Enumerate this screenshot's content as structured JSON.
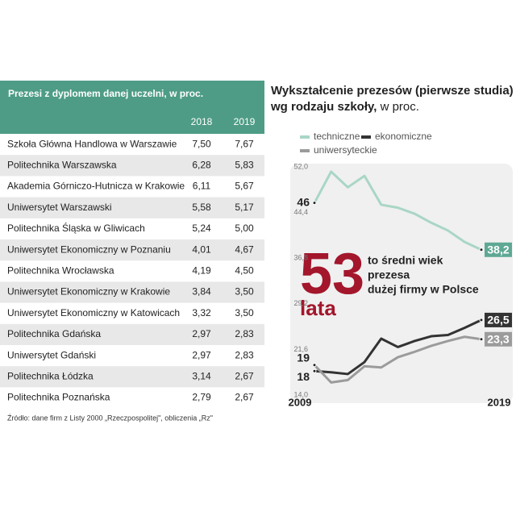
{
  "table": {
    "title": "Prezesi z dyplomem danej uczelni, w proc.",
    "columns": [
      "2018",
      "2019"
    ],
    "rows": [
      [
        "Szkoła Główna Handlowa w Warszawie",
        "7,50",
        "7,67"
      ],
      [
        "Politechnika Warszawska",
        "6,28",
        "5,83"
      ],
      [
        "Akademia Górniczo-Hutnicza w Krakowie",
        "6,11",
        "5,67"
      ],
      [
        "Uniwersytet Warszawski",
        "5,58",
        "5,17"
      ],
      [
        "Politechnika Śląska w Gliwicach",
        "5,24",
        "5,00"
      ],
      [
        "Uniwersytet Ekonomiczny w Poznaniu",
        "4,01",
        "4,67"
      ],
      [
        "Politechnika Wrocławska",
        "4,19",
        "4,50"
      ],
      [
        "Uniwersytet Ekonomiczny w Krakowie",
        "3,84",
        "3,50"
      ],
      [
        "Uniwersytet Ekonomiczny w Katowicach",
        "3,32",
        "3,50"
      ],
      [
        "Politechnika Gdańska",
        "2,97",
        "2,83"
      ],
      [
        "Uniwersytet Gdański",
        "2,97",
        "2,83"
      ],
      [
        "Politechnika Łódzka",
        "3,14",
        "2,67"
      ],
      [
        "Politechnika Poznańska",
        "2,79",
        "2,67"
      ]
    ],
    "source": "Źródło: dane firm z Listy 2000 „Rzeczpospolitej\", obliczenia „Rz\""
  },
  "chart_data": {
    "type": "line",
    "title_lines": [
      "Wykształcenie prezesów (pierwsze studia)",
      "wg rodzaju szkoły,"
    ],
    "subtitle": "w proc.",
    "categories": [
      "2009",
      null,
      null,
      null,
      null,
      null,
      null,
      null,
      null,
      null,
      "2019"
    ],
    "ylim": [
      14.0,
      52.0
    ],
    "yticks": [
      {
        "value": 52.0,
        "label": "52,0"
      },
      {
        "value": 44.4,
        "label": "44,4"
      },
      {
        "value": 36.8,
        "label": "36,8"
      },
      {
        "value": 29.2,
        "label": "29,2"
      },
      {
        "value": 21.6,
        "label": "21,6"
      },
      {
        "value": 14.0,
        "label": "14,0"
      }
    ],
    "grid": false,
    "series": [
      {
        "name": "techniczne",
        "color": "#a9d6c5",
        "label_color": "#5ea894",
        "values": [
          46,
          51.2,
          48.6,
          50.5,
          45.7,
          45.2,
          44.2,
          42.7,
          41.4,
          39.5,
          38.2
        ],
        "value_labels": [
          "46",
          null,
          null,
          null,
          null,
          null,
          null,
          null,
          null,
          null,
          "38,2"
        ]
      },
      {
        "name": "ekonomiczne",
        "color": "#333333",
        "label_color": "#333333",
        "values": [
          18,
          17.8,
          17.5,
          19.5,
          23.4,
          22.0,
          23.0,
          23.8,
          24.0,
          25.2,
          26.5
        ],
        "value_labels": [
          "18",
          null,
          null,
          null,
          null,
          null,
          null,
          null,
          null,
          null,
          "26,5"
        ]
      },
      {
        "name": "uniwersyteckie",
        "color": "#9b9b9b",
        "label_color": "#9b9b9b",
        "values": [
          19,
          16.1,
          16.5,
          18.8,
          18.6,
          20.3,
          21.2,
          22.2,
          23.0,
          23.7,
          23.3
        ],
        "value_labels": [
          "19",
          null,
          null,
          null,
          null,
          null,
          null,
          null,
          null,
          null,
          "23,3"
        ]
      }
    ],
    "annotation": {
      "number": "53",
      "unit": "lata",
      "text": [
        "to średni wiek",
        "prezesa",
        "dużej firmy w Polsce"
      ]
    }
  }
}
